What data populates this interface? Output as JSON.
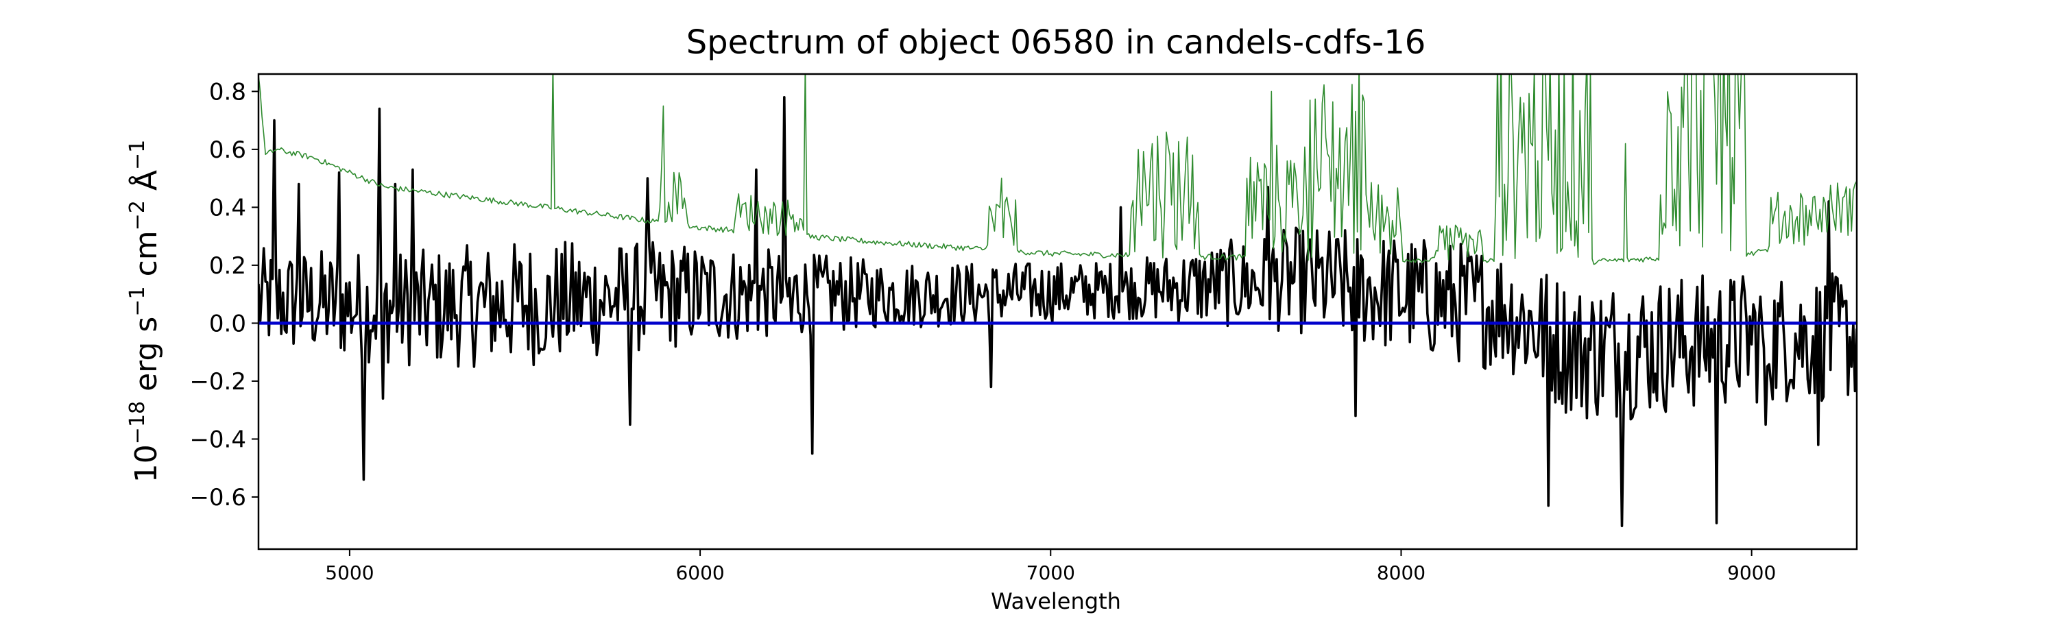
{
  "chart_data": {
    "type": "line",
    "title": "Spectrum of object 06580 in candels-cdfs-16",
    "xlabel": "Wavelength",
    "ylabel_parts": {
      "base": "10",
      "exp1": "−18",
      "mid1": " erg s",
      "exp2": "−1",
      "mid2": " cm",
      "exp3": "−2",
      "mid3": " Å",
      "exp4": "−1"
    },
    "xlim": [
      4740,
      9300
    ],
    "ylim": [
      -0.78,
      0.86
    ],
    "xticks": [
      5000,
      6000,
      7000,
      8000,
      9000
    ],
    "xtick_labels": [
      "5000",
      "6000",
      "7000",
      "8000",
      "9000"
    ],
    "yticks": [
      -0.6,
      -0.4,
      -0.2,
      0.0,
      0.2,
      0.4,
      0.6,
      0.8
    ],
    "ytick_labels": [
      "−0.6",
      "−0.4",
      "−0.2",
      "0.0",
      "0.2",
      "0.4",
      "0.6",
      "0.8"
    ],
    "grid": false,
    "series": [
      {
        "role": "flux",
        "color": "#000000",
        "x_start": 4740,
        "x_step": 5,
        "baseline": [
          [
            4740,
            0.08
          ],
          [
            5200,
            0.05
          ],
          [
            6000,
            0.1
          ],
          [
            6800,
            0.1
          ],
          [
            7300,
            0.12
          ],
          [
            7700,
            0.15
          ],
          [
            8300,
            0.05
          ],
          [
            8500,
            -0.1
          ],
          [
            9000,
            -0.05
          ],
          [
            9300,
            -0.05
          ]
        ],
        "noise": [
          [
            4740,
            0.18
          ],
          [
            5500,
            0.22
          ],
          [
            6000,
            0.18
          ],
          [
            6500,
            0.12
          ],
          [
            7200,
            0.1
          ],
          [
            7800,
            0.2
          ],
          [
            8300,
            0.22
          ],
          [
            8600,
            0.25
          ],
          [
            9300,
            0.22
          ]
        ],
        "spikes": [
          [
            4785,
            0.7
          ],
          [
            4855,
            0.48
          ],
          [
            4970,
            0.52
          ],
          [
            5040,
            -0.54
          ],
          [
            5085,
            0.74
          ],
          [
            5095,
            -0.26
          ],
          [
            5130,
            0.48
          ],
          [
            5180,
            0.53
          ],
          [
            5560,
            -0.05
          ],
          [
            5800,
            -0.35
          ],
          [
            5850,
            0.5
          ],
          [
            6160,
            0.53
          ],
          [
            6240,
            0.78
          ],
          [
            6260,
            0.0
          ],
          [
            6320,
            -0.45
          ],
          [
            6830,
            -0.22
          ],
          [
            7200,
            0.4
          ],
          [
            7620,
            0.47
          ],
          [
            7870,
            -0.32
          ],
          [
            8420,
            -0.63
          ],
          [
            8630,
            -0.7
          ],
          [
            8900,
            -0.69
          ],
          [
            9040,
            -0.35
          ],
          [
            9190,
            -0.42
          ],
          [
            9220,
            0.42
          ]
        ]
      },
      {
        "role": "error",
        "color": "#2e8b2e",
        "x_start": 4740,
        "x_step": 5,
        "baseline": [
          [
            4740,
            0.86
          ],
          [
            4760,
            0.58
          ],
          [
            4790,
            0.6
          ],
          [
            4900,
            0.57
          ],
          [
            5100,
            0.47
          ],
          [
            5500,
            0.41
          ],
          [
            6000,
            0.33
          ],
          [
            6500,
            0.28
          ],
          [
            7000,
            0.24
          ],
          [
            7400,
            0.23
          ],
          [
            8000,
            0.22
          ],
          [
            8500,
            0.21
          ],
          [
            9000,
            0.24
          ],
          [
            9300,
            0.31
          ]
        ],
        "forest_regions": [
          [
            5880,
            5960,
            0.12
          ],
          [
            6100,
            6300,
            0.08
          ],
          [
            6820,
            6900,
            0.12
          ],
          [
            7230,
            7420,
            0.3
          ],
          [
            7560,
            7720,
            0.25
          ],
          [
            7720,
            7900,
            0.4
          ],
          [
            7900,
            8000,
            0.18
          ],
          [
            8100,
            8230,
            0.08
          ],
          [
            8270,
            8540,
            0.5
          ],
          [
            8740,
            8980,
            0.6
          ],
          [
            9050,
            9300,
            0.12
          ]
        ],
        "lines": [
          [
            5580,
            0.9
          ],
          [
            5895,
            0.75
          ],
          [
            6300,
            0.9
          ],
          [
            6860,
            0.5
          ],
          [
            7250,
            0.6
          ],
          [
            7630,
            0.8
          ],
          [
            7880,
            0.9
          ],
          [
            8640,
            0.62
          ]
        ]
      },
      {
        "role": "zero",
        "color": "#0000cc",
        "x": [
          4740,
          9300
        ],
        "y": [
          0.0,
          0.0
        ]
      }
    ]
  }
}
